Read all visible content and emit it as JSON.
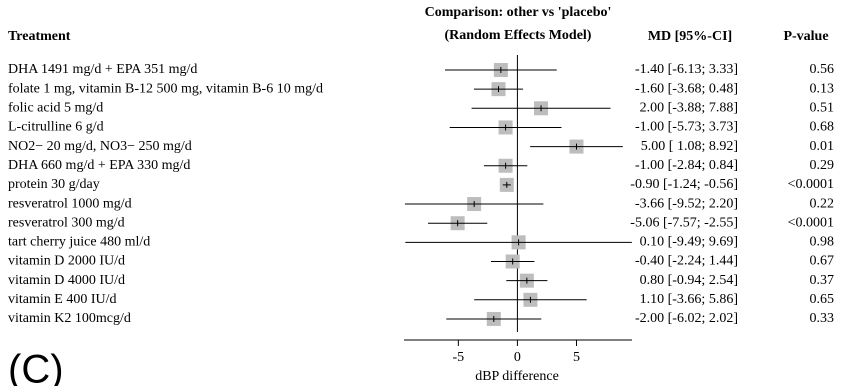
{
  "chart_data": {
    "type": "forest",
    "title": "Comparison: other vs 'placebo'",
    "subtitle": "(Random Effects Model)",
    "columns": [
      "Treatment",
      "MD [95%-CI]",
      "P-value"
    ],
    "categories": [
      "DHA 1491 mg/d + EPA 351 mg/d",
      "folate 1 mg, vitamin B-12 500 mg, vitamin B-6 10 mg/d",
      "folic acid 5 mg/d",
      "L-citrulline 6 g/d",
      "NO2− 20 mg/d, NO3− 250 mg/d",
      "DHA 660 mg/d + EPA 330 mg/d",
      "protein 30 g/day",
      "resveratrol 1000 mg/d",
      "resveratrol 300 mg/d",
      "tart cherry juice 480 ml/d",
      "vitamin D 2000 IU/d",
      "vitamin D 4000 IU/d",
      "vitamin E 400 IU/d",
      "vitamin K2 100mcg/d"
    ],
    "values": [
      -1.4,
      -1.6,
      2.0,
      -1.0,
      5.0,
      -1.0,
      -0.9,
      -3.66,
      -5.06,
      0.1,
      -0.4,
      0.8,
      1.1,
      -2.0
    ],
    "lower": [
      -6.13,
      -3.68,
      -3.88,
      -5.73,
      1.08,
      -2.84,
      -1.24,
      -9.52,
      -7.57,
      -9.49,
      -2.24,
      -0.94,
      -3.66,
      -6.02
    ],
    "upper": [
      3.33,
      0.48,
      7.88,
      3.73,
      8.92,
      0.84,
      -0.56,
      2.2,
      -2.55,
      9.69,
      1.44,
      2.54,
      5.86,
      2.02
    ],
    "value_labels": [
      "-1.40 [-6.13; 3.33]",
      "-1.60 [-3.68; 0.48]",
      "2.00 [-3.88; 7.88]",
      "-1.00 [-5.73; 3.73]",
      "5.00 [ 1.08; 8.92]",
      "-1.00 [-2.84; 0.84]",
      "-0.90 [-1.24; -0.56]",
      "-3.66 [-9.52; 2.20]",
      "-5.06 [-7.57; -2.55]",
      "0.10 [-9.49; 9.69]",
      "-0.40 [-2.24; 1.44]",
      "0.80 [-0.94; 2.54]",
      "1.10 [-3.66; 5.86]",
      "-2.00 [-6.02; 2.02]"
    ],
    "p_values": [
      "0.56",
      "0.13",
      "0.51",
      "0.68",
      "0.01",
      "0.29",
      "<0.0001",
      "0.22",
      "<0.0001",
      "0.98",
      "0.67",
      "0.37",
      "0.65",
      "0.33"
    ],
    "color": "#bdbdbd",
    "xlim": [
      -9.6,
      9.7
    ],
    "xticks": [
      -5,
      0,
      5
    ],
    "xlabel": "dBP difference",
    "panel_label": "(C)"
  }
}
